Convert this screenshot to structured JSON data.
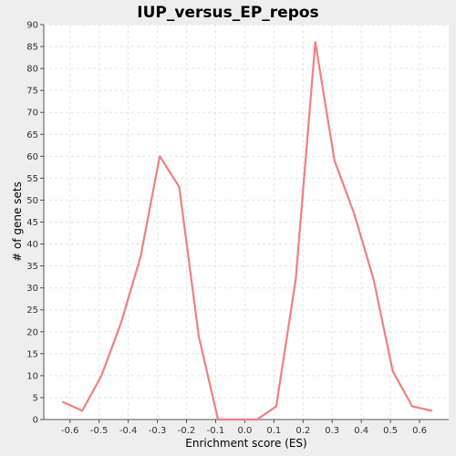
{
  "chart_data": {
    "type": "line",
    "title": "IUP_versus_EP_repos",
    "xlabel": "Enrichment score (ES)",
    "ylabel": "# of gene sets",
    "xlim": [
      -0.69,
      0.7
    ],
    "ylim": [
      0,
      90
    ],
    "grid": true,
    "legend": "none",
    "x_ticks": [
      -0.6,
      -0.5,
      -0.4,
      -0.3,
      -0.2,
      -0.1,
      0.0,
      0.1,
      0.2,
      0.3,
      0.4,
      0.5,
      0.6
    ],
    "x_tick_labels": [
      "-0.6",
      "-0.5",
      "-0.4",
      "-0.3",
      "-0.2",
      "-0.1",
      "0.0",
      "0.1",
      "0.2",
      "0.3",
      "0.4",
      "0.5",
      "0.6"
    ],
    "y_ticks": [
      0,
      5,
      10,
      15,
      20,
      25,
      30,
      35,
      40,
      45,
      50,
      55,
      60,
      65,
      70,
      75,
      80,
      85,
      90
    ],
    "y_tick_labels": [
      "0",
      "5",
      "10",
      "15",
      "20",
      "25",
      "30",
      "35",
      "40",
      "45",
      "50",
      "55",
      "60",
      "65",
      "70",
      "75",
      "80",
      "85",
      "90"
    ],
    "series": [
      {
        "name": "IUP_versus_EP_repos",
        "color": "#f08080",
        "x": [
          -0.625,
          -0.558,
          -0.492,
          -0.425,
          -0.358,
          -0.292,
          -0.225,
          -0.158,
          -0.092,
          -0.025,
          0.042,
          0.108,
          0.175,
          0.242,
          0.308,
          0.375,
          0.442,
          0.508,
          0.575,
          0.642
        ],
        "y": [
          4,
          2,
          10,
          22,
          37,
          60,
          53,
          19,
          0,
          0,
          0,
          3,
          32,
          86,
          59,
          47,
          32,
          11,
          3,
          2
        ]
      }
    ]
  }
}
